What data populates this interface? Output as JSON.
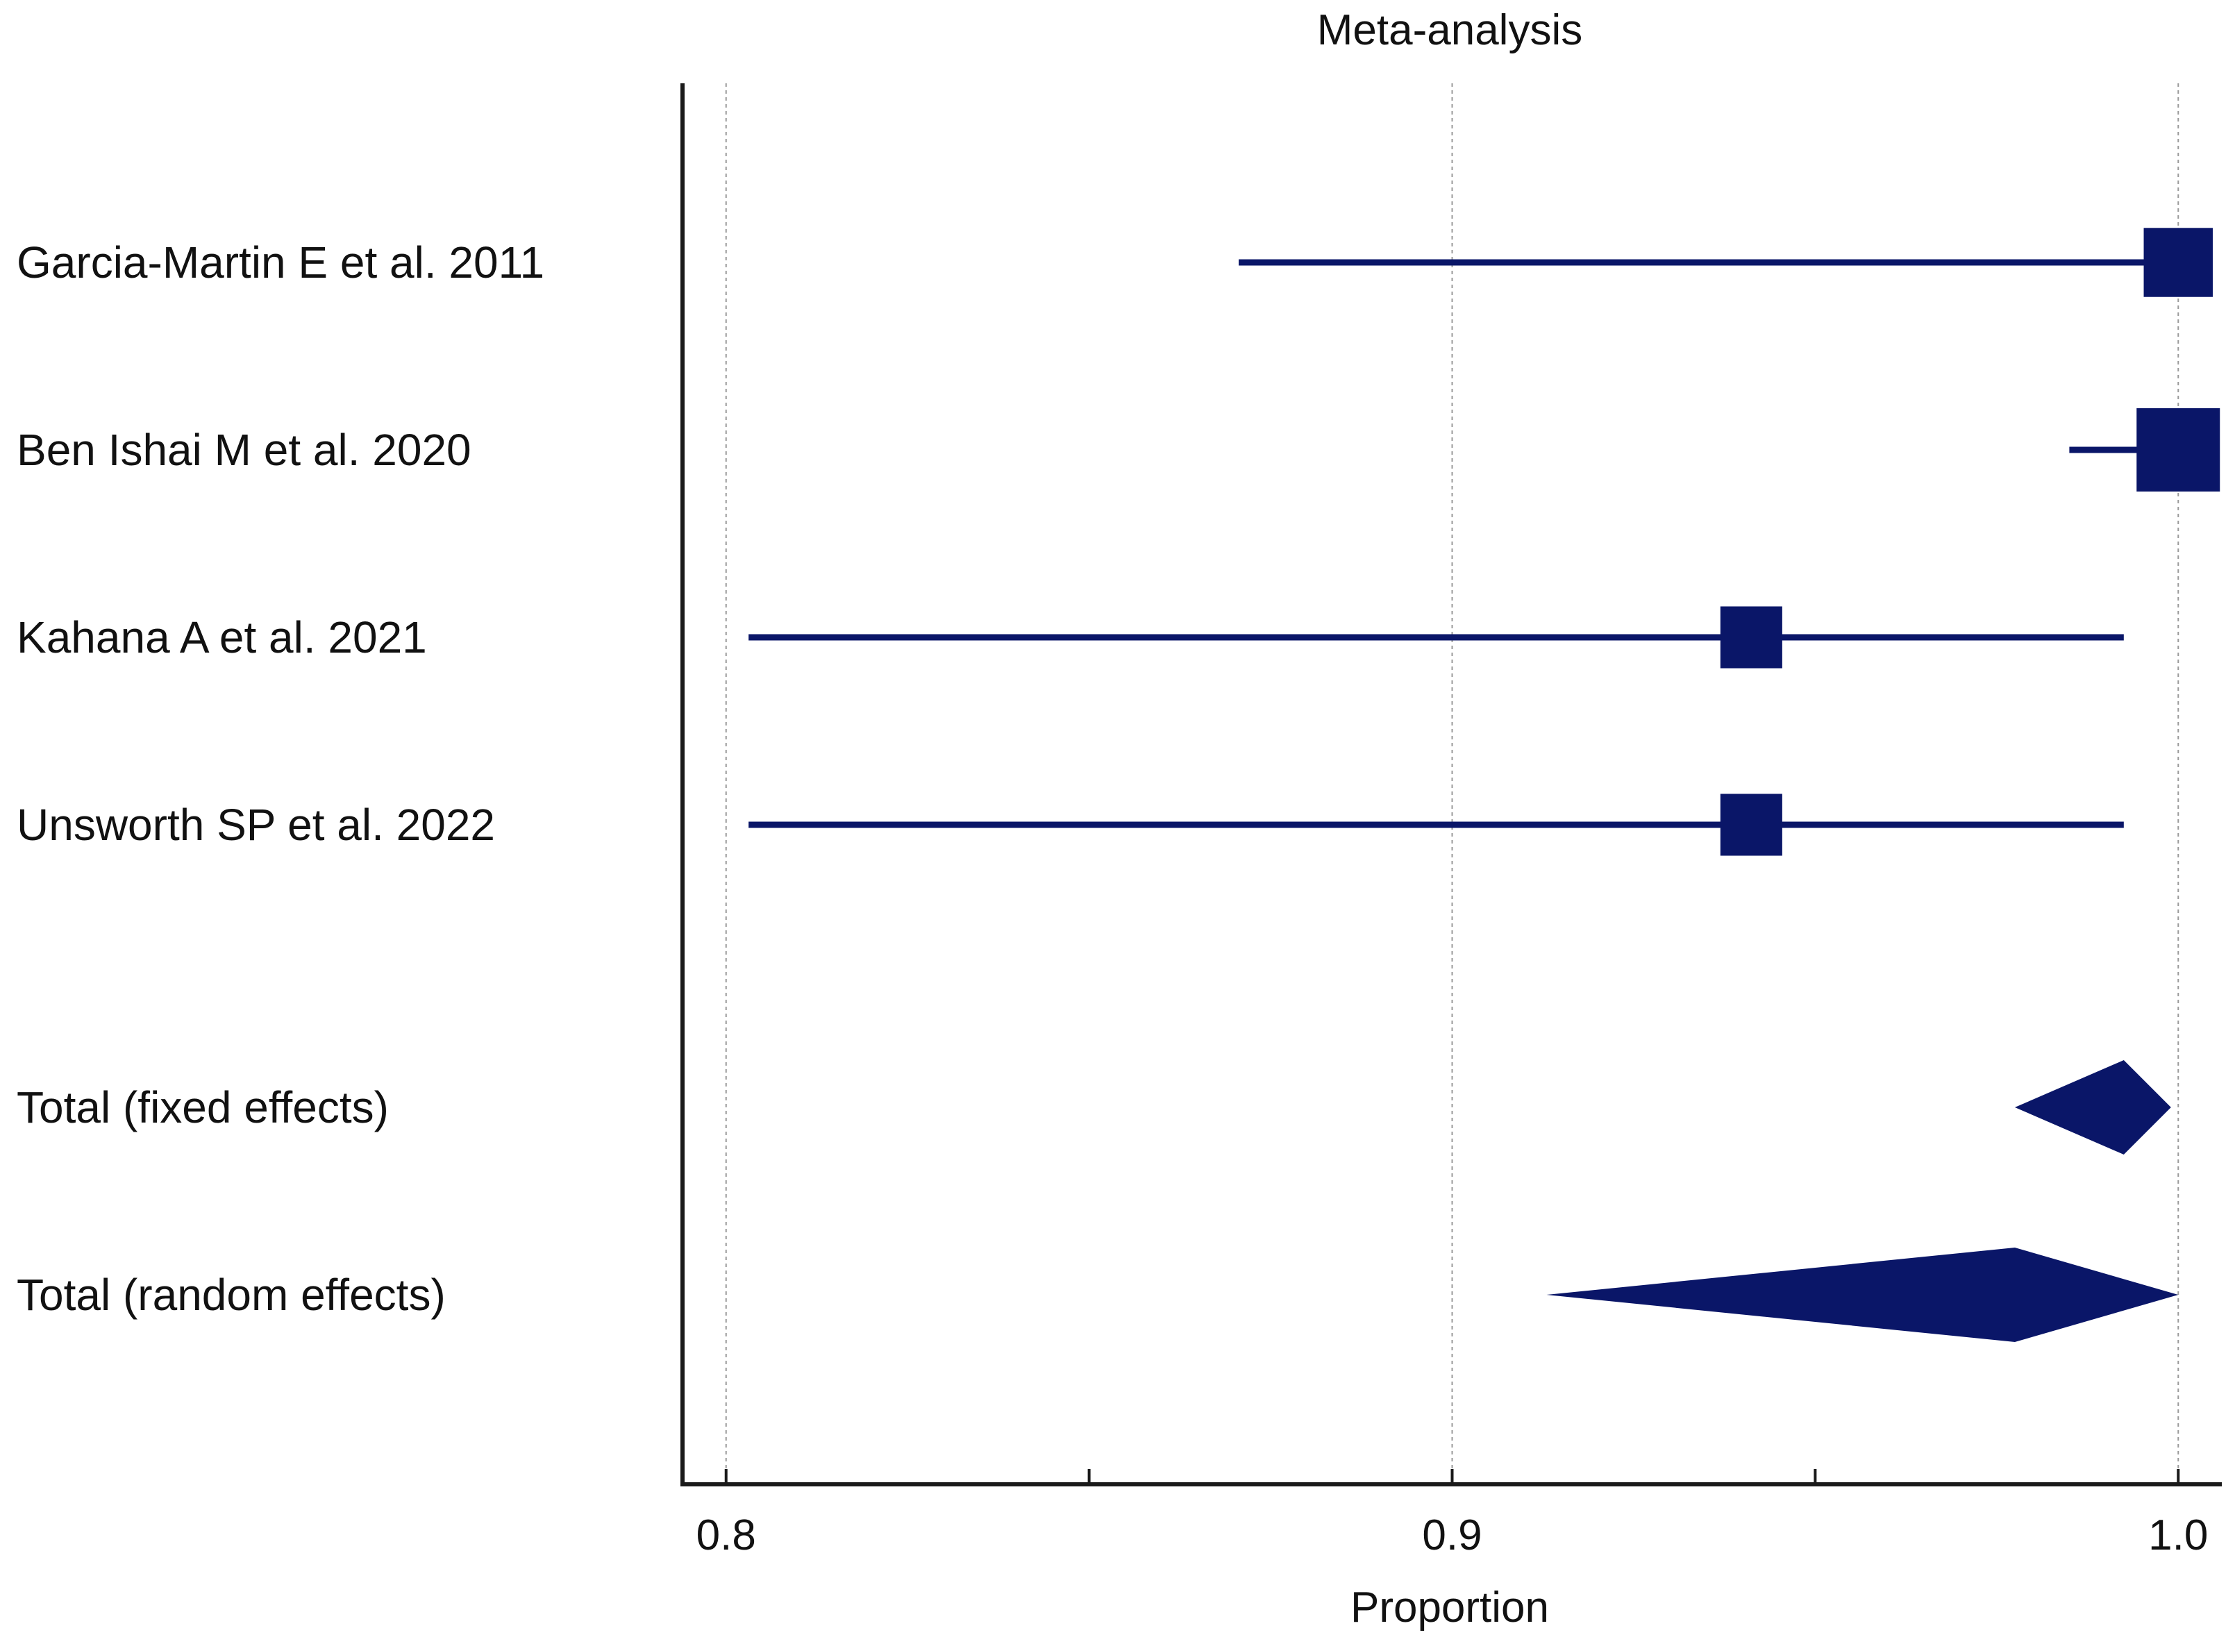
{
  "colors": {
    "mark": "#0a1668",
    "axis": "#1a1a1a",
    "grid": "#9a9a9a",
    "text": "#111111"
  },
  "chart_data": {
    "type": "forest",
    "title": "Meta-analysis",
    "xlabel": "Proportion",
    "xlim": [
      0.794,
      1.006
    ],
    "ticks": [
      0.8,
      0.85,
      0.9,
      0.95,
      1.0
    ],
    "tick_labels": [
      "0.8",
      "0.9",
      "1.0"
    ],
    "tick_label_values": [
      0.8,
      0.9,
      1.0
    ],
    "gridlines": [
      0.8,
      0.9,
      1.0
    ],
    "studies": [
      {
        "label": "Garcia-Martin E et al. 2011",
        "estimate": 1.0,
        "lower": 0.8706,
        "upper": 1.0,
        "weight": 0.16
      },
      {
        "label": "Ben Ishai M et al. 2020",
        "estimate": 1.0,
        "lower": 0.985,
        "upper": 1.0,
        "weight": 0.6
      },
      {
        "label": "Kahana A et al. 2021",
        "estimate": 0.9412,
        "lower": 0.8031,
        "upper": 0.9925,
        "weight": 0.12
      },
      {
        "label": "Unsworth SP et al. 2022",
        "estimate": 0.9412,
        "lower": 0.8031,
        "upper": 0.9925,
        "weight": 0.12
      }
    ],
    "totals": [
      {
        "label": "Total (fixed effects)",
        "estimate": 0.9925,
        "lower": 0.9775,
        "upper": 0.999
      },
      {
        "label": "Total (random effects)",
        "estimate": 0.9775,
        "lower": 0.913,
        "upper": 1.0
      }
    ]
  }
}
